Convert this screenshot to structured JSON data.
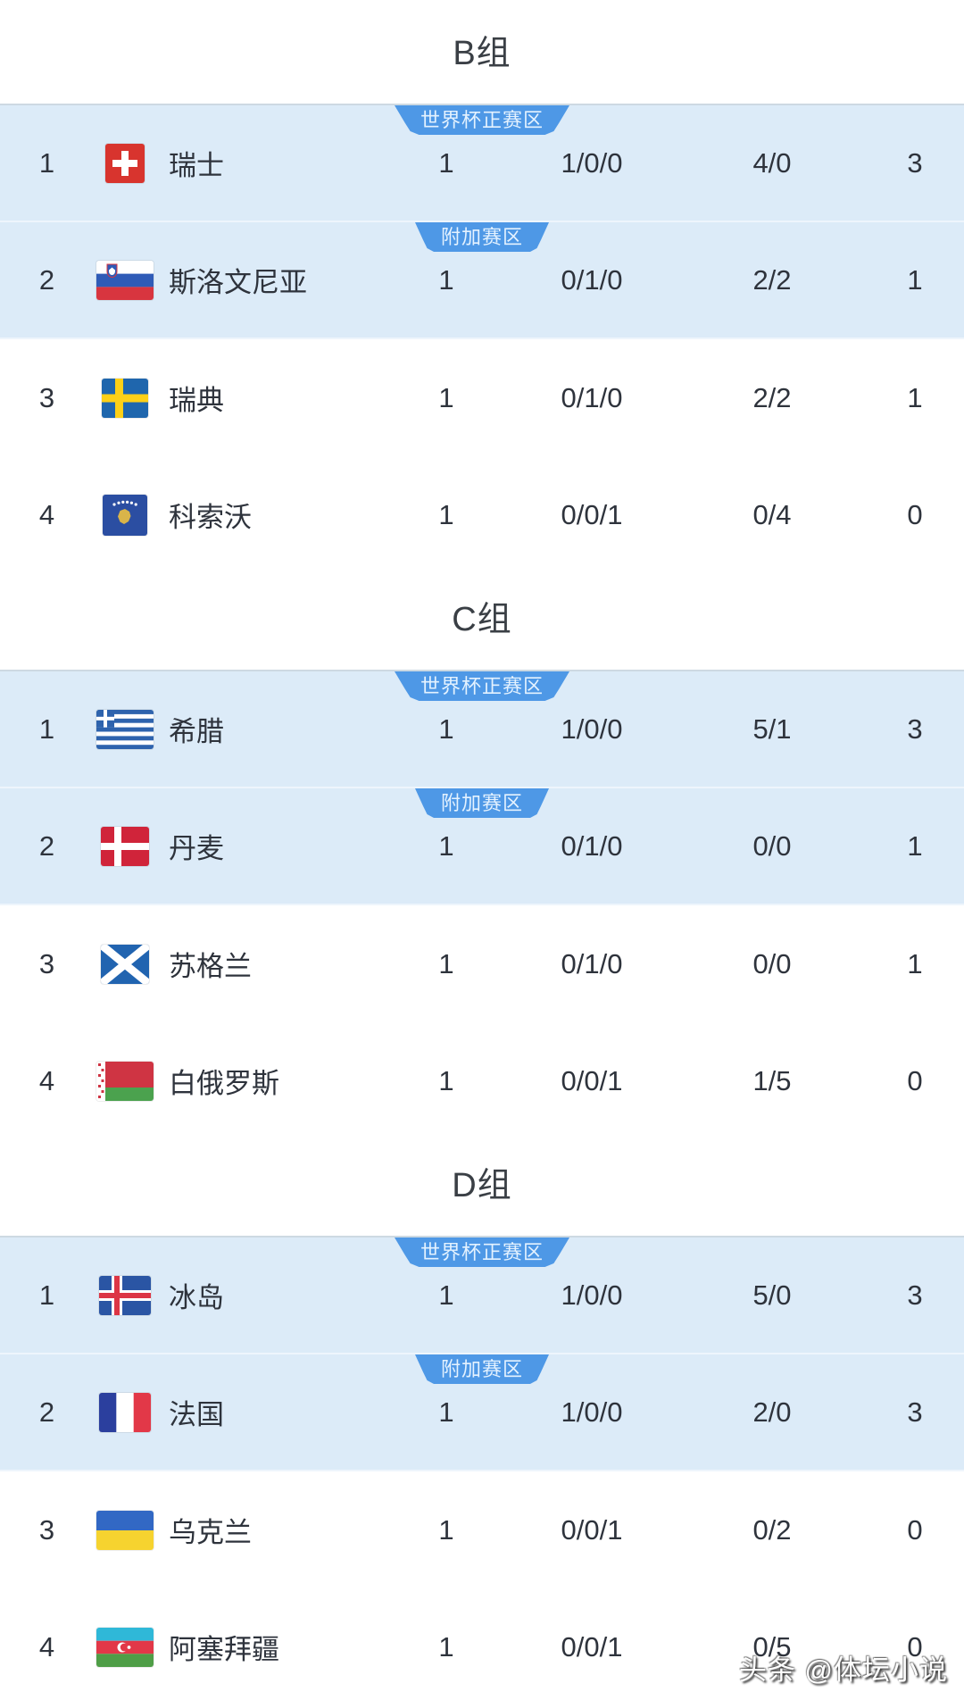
{
  "watermark": "头条 @体坛小说",
  "zone_labels": {
    "qualified": "世界杯正赛区",
    "playoff": "附加赛区"
  },
  "colors": {
    "badge_blue": "#4e98e6",
    "badge_text": "#e4f2ff",
    "highlight_row": "#dcebf8",
    "text": "#2e333c",
    "title": "#3a3f45"
  },
  "groups": [
    {
      "title": "B组",
      "rows": [
        {
          "rank": "1",
          "flag": "switzerland",
          "team": "瑞士",
          "played": "1",
          "wdl": "1/0/0",
          "goals": "4/0",
          "points": "3",
          "zone": "qualified",
          "highlight": true
        },
        {
          "rank": "2",
          "flag": "slovenia",
          "team": "斯洛文尼亚",
          "played": "1",
          "wdl": "0/1/0",
          "goals": "2/2",
          "points": "1",
          "zone": "playoff",
          "highlight": true
        },
        {
          "rank": "3",
          "flag": "sweden",
          "team": "瑞典",
          "played": "1",
          "wdl": "0/1/0",
          "goals": "2/2",
          "points": "1",
          "highlight": false
        },
        {
          "rank": "4",
          "flag": "kosovo",
          "team": "科索沃",
          "played": "1",
          "wdl": "0/0/1",
          "goals": "0/4",
          "points": "0",
          "highlight": false
        }
      ]
    },
    {
      "title": "C组",
      "rows": [
        {
          "rank": "1",
          "flag": "greece",
          "team": "希腊",
          "played": "1",
          "wdl": "1/0/0",
          "goals": "5/1",
          "points": "3",
          "zone": "qualified",
          "highlight": true
        },
        {
          "rank": "2",
          "flag": "denmark",
          "team": "丹麦",
          "played": "1",
          "wdl": "0/1/0",
          "goals": "0/0",
          "points": "1",
          "zone": "playoff",
          "highlight": true
        },
        {
          "rank": "3",
          "flag": "scotland",
          "team": "苏格兰",
          "played": "1",
          "wdl": "0/1/0",
          "goals": "0/0",
          "points": "1",
          "highlight": false
        },
        {
          "rank": "4",
          "flag": "belarus",
          "team": "白俄罗斯",
          "played": "1",
          "wdl": "0/0/1",
          "goals": "1/5",
          "points": "0",
          "highlight": false
        }
      ]
    },
    {
      "title": "D组",
      "rows": [
        {
          "rank": "1",
          "flag": "iceland",
          "team": "冰岛",
          "played": "1",
          "wdl": "1/0/0",
          "goals": "5/0",
          "points": "3",
          "zone": "qualified",
          "highlight": true
        },
        {
          "rank": "2",
          "flag": "france",
          "team": "法国",
          "played": "1",
          "wdl": "1/0/0",
          "goals": "2/0",
          "points": "3",
          "zone": "playoff",
          "highlight": true
        },
        {
          "rank": "3",
          "flag": "ukraine",
          "team": "乌克兰",
          "played": "1",
          "wdl": "0/0/1",
          "goals": "0/2",
          "points": "0",
          "highlight": false
        },
        {
          "rank": "4",
          "flag": "azerbaijan",
          "team": "阿塞拜疆",
          "played": "1",
          "wdl": "0/0/1",
          "goals": "0/5",
          "points": "0",
          "highlight": false
        }
      ]
    }
  ]
}
